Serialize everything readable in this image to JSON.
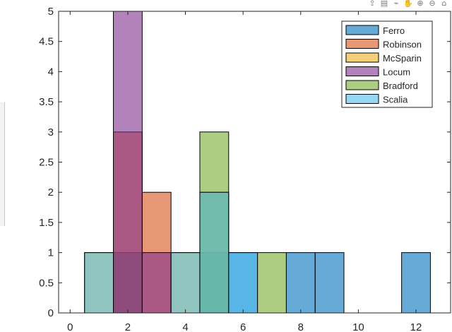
{
  "toolbar": {
    "icons": [
      {
        "name": "export-icon",
        "glyph": "⇪"
      },
      {
        "name": "brush-icon",
        "glyph": "▤"
      },
      {
        "name": "datatip-icon",
        "glyph": "⌁"
      },
      {
        "name": "pan-icon",
        "glyph": "✋"
      },
      {
        "name": "zoom-in-icon",
        "glyph": "⊕"
      },
      {
        "name": "zoom-out-icon",
        "glyph": "⊖"
      },
      {
        "name": "home-icon",
        "glyph": "⌂"
      }
    ]
  },
  "chart_data": {
    "type": "bar",
    "title": "",
    "xlabel": "",
    "ylabel": "",
    "xlim": [
      -0.4,
      13.2
    ],
    "ylim": [
      0,
      5
    ],
    "xticks": [
      0,
      2,
      4,
      6,
      8,
      10,
      12
    ],
    "yticks": [
      0,
      0.5,
      1,
      1.5,
      2,
      2.5,
      3,
      3.5,
      4,
      4.5,
      5
    ],
    "bin_width": 1,
    "grid": false,
    "legend_position": "top-right",
    "series": [
      {
        "name": "Ferro",
        "color": "#0072BD",
        "bins": [
          {
            "x": 2,
            "value": 1
          },
          {
            "x": 5,
            "value": 1
          },
          {
            "x": 6,
            "value": 1
          },
          {
            "x": 8,
            "value": 1
          },
          {
            "x": 9,
            "value": 1
          },
          {
            "x": 12,
            "value": 1
          }
        ]
      },
      {
        "name": "Robinson",
        "color": "#D95319",
        "bins": [
          {
            "x": 2,
            "value": 3
          },
          {
            "x": 3,
            "value": 2
          }
        ]
      },
      {
        "name": "McSparin",
        "color": "#EDB120",
        "bins": [
          {
            "x": 1,
            "value": 1
          },
          {
            "x": 4,
            "value": 1
          },
          {
            "x": 5,
            "value": 2
          }
        ]
      },
      {
        "name": "Locum",
        "color": "#7E2F8E",
        "bins": [
          {
            "x": 2,
            "value": 5
          },
          {
            "x": 3,
            "value": 1
          }
        ]
      },
      {
        "name": "Bradford",
        "color": "#77AC30",
        "bins": [
          {
            "x": 5,
            "value": 3
          },
          {
            "x": 7,
            "value": 1
          }
        ]
      },
      {
        "name": "Scalia",
        "color": "#4DBEEE",
        "bins": [
          {
            "x": 1,
            "value": 1
          },
          {
            "x": 4,
            "value": 1
          },
          {
            "x": 5,
            "value": 2
          },
          {
            "x": 6,
            "value": 1
          }
        ]
      }
    ]
  }
}
